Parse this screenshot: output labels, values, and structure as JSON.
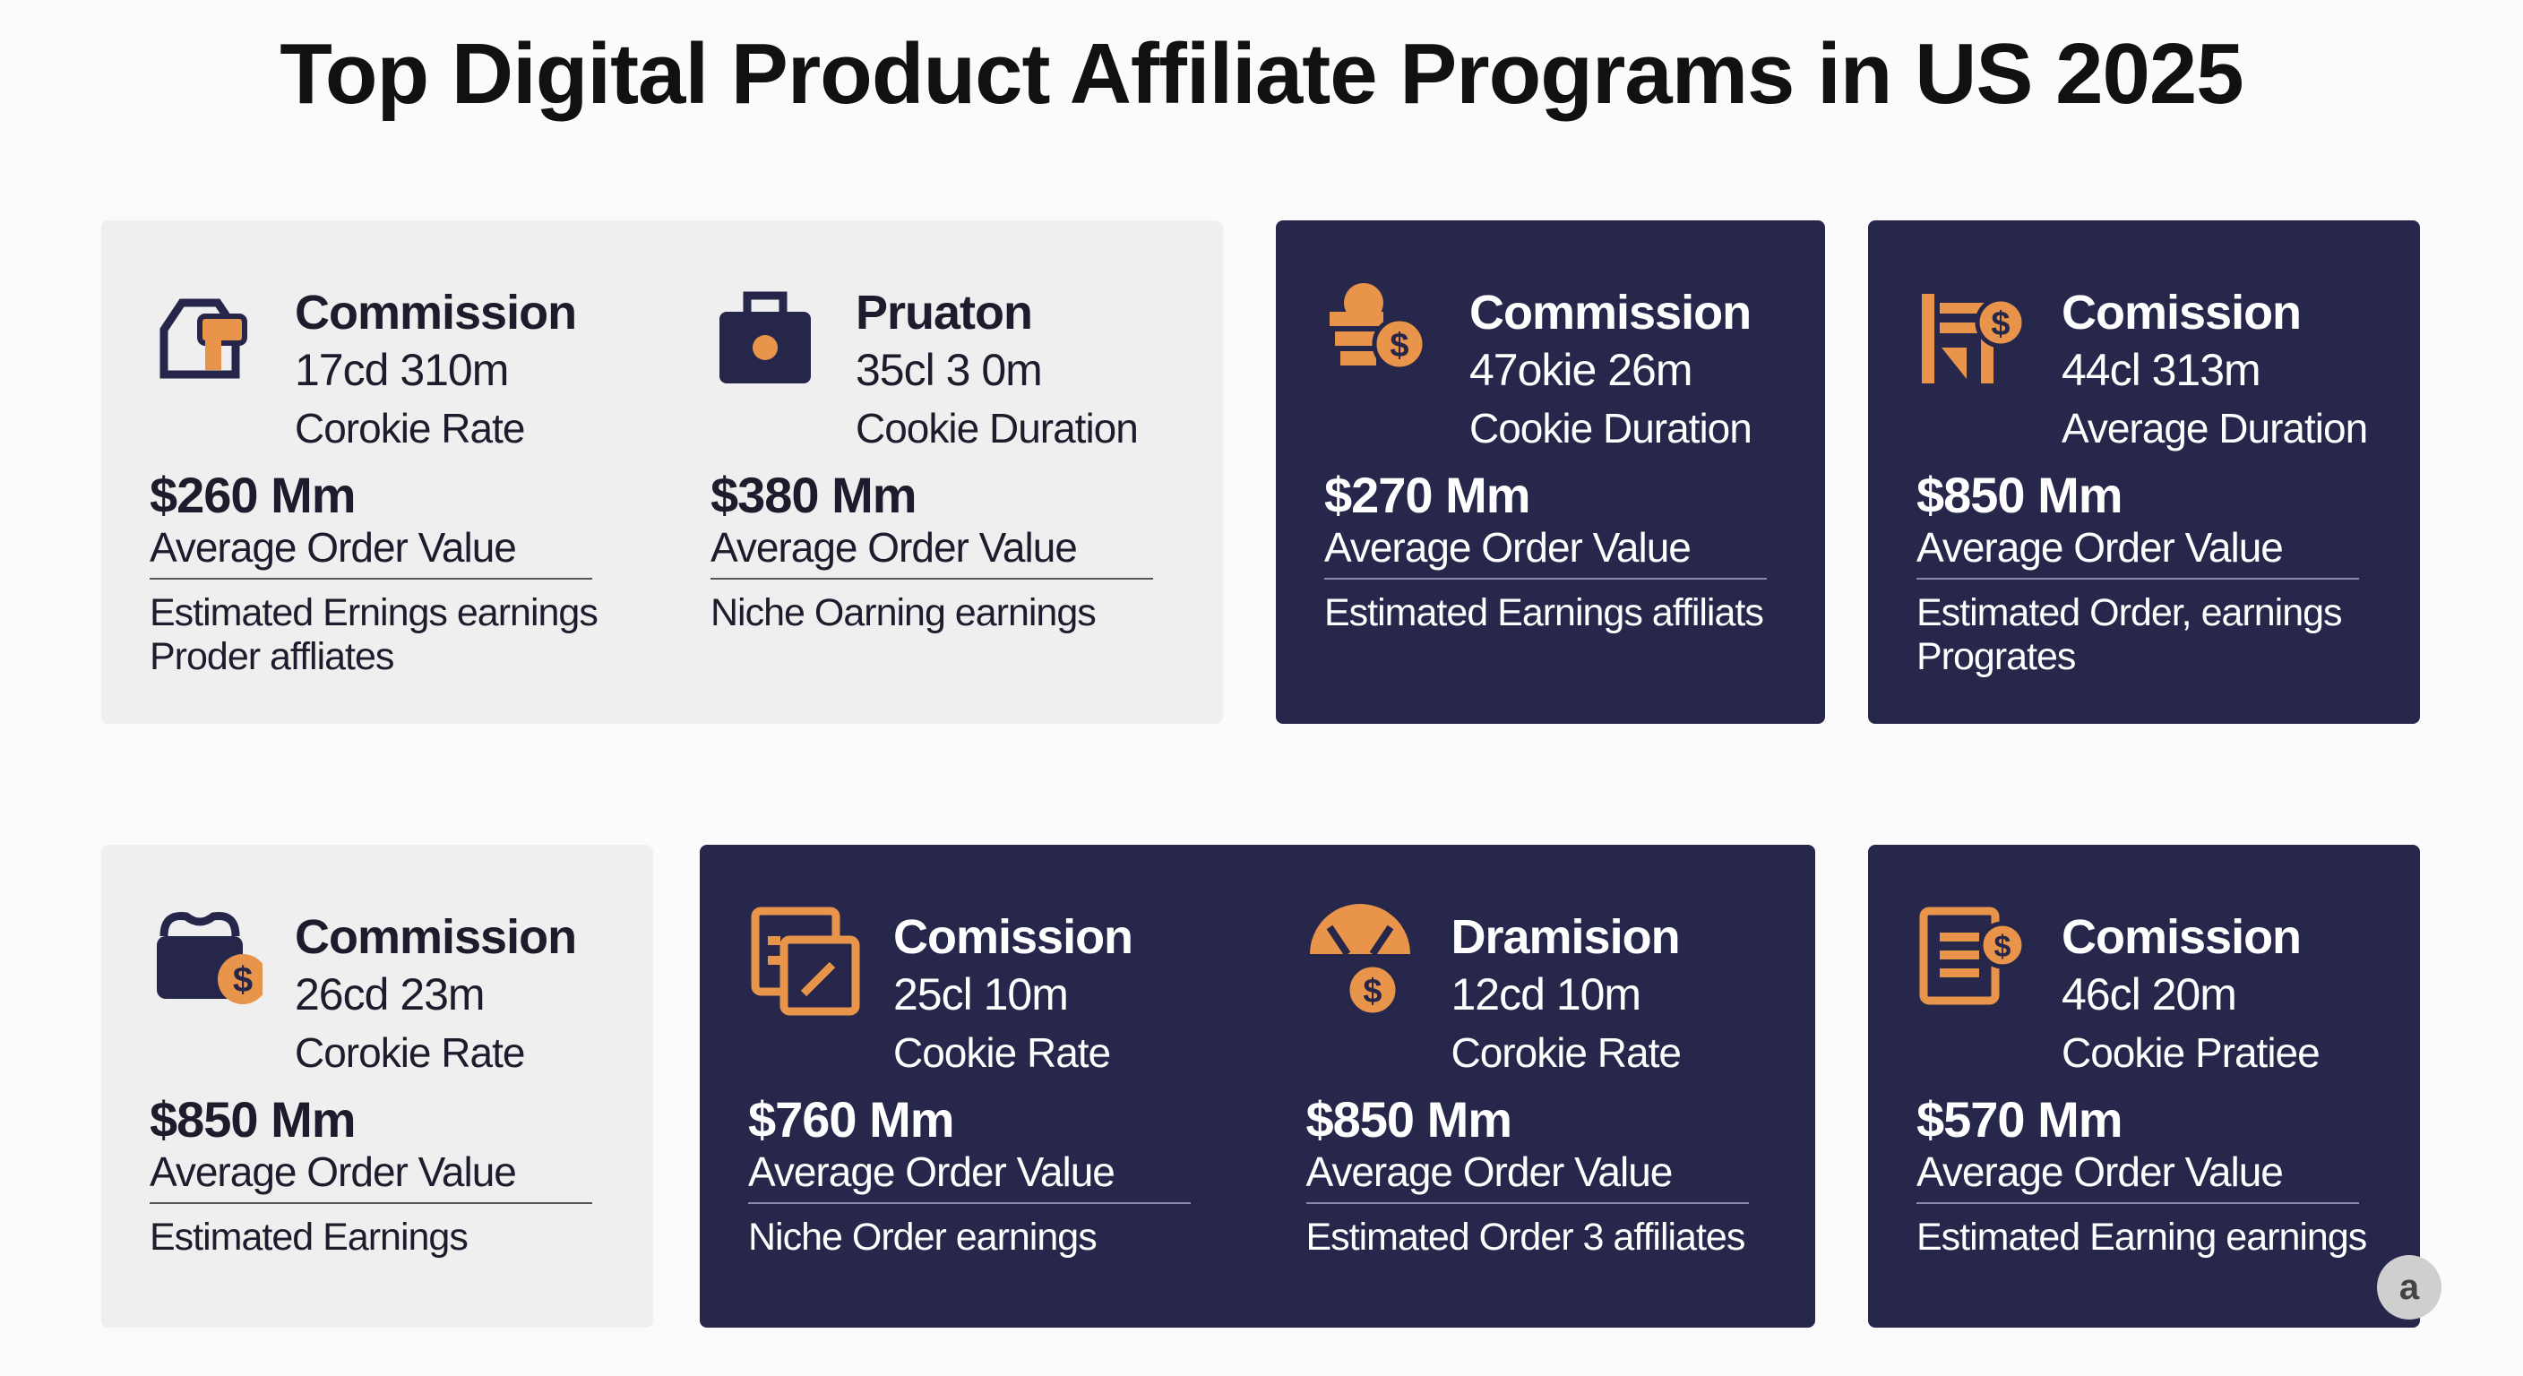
{
  "header": {
    "title": "Top Digital Product Affiliate Programs in US 2025"
  },
  "cards": [
    {
      "items": [
        {
          "title": "Commission",
          "value": "17cd 310m",
          "subtitle": "Corokie Rate",
          "price": "$260 Mm",
          "price_label": "Average Order Value",
          "note": [
            "Estimated Ernings earnings",
            "Proder affliates"
          ]
        },
        {
          "title": "Pruaton",
          "value": "35cl 3 0m",
          "subtitle": "Cookie Duration",
          "price": "$380 Mm",
          "price_label": "Average Order Value",
          "note": [
            "Niche Oarning earnings"
          ]
        }
      ]
    },
    {
      "items": [
        {
          "title": "Commission",
          "value": "47okie 26m",
          "subtitle": "Cookie Duration",
          "price": "$270 Mm",
          "price_label": "Average Order Value",
          "note": [
            "Estimated Earnings affiliats"
          ]
        }
      ]
    },
    {
      "items": [
        {
          "title": "Comission",
          "value": "44cl 313m",
          "subtitle": "Average Duration",
          "price": "$850 Mm",
          "price_label": "Average Order Value",
          "note": [
            "Estimated Order, earnings",
            "Progrates"
          ]
        }
      ]
    },
    {
      "items": [
        {
          "title": "Commission",
          "value": "26cd 23m",
          "subtitle": "Corokie Rate",
          "price": "$850 Mm",
          "price_label": "Average Order Value",
          "note": [
            "Estimated Earnings"
          ]
        }
      ]
    },
    {
      "items": [
        {
          "title": "Comission",
          "value": "25cl 10m",
          "subtitle": "Cookie Rate",
          "price": "$760 Mm",
          "price_label": "Average Order Value",
          "note": [
            "Niche Order earnings"
          ]
        },
        {
          "title": "Dramision",
          "value": "12cd 10m",
          "subtitle": "Corokie Rate",
          "price": "$850 Mm",
          "price_label": "Average Order Value",
          "note": [
            "Estimated Order 3 affiliates"
          ]
        }
      ]
    },
    {
      "items": [
        {
          "title": "Comission",
          "value": "46cl 20m",
          "subtitle": "Cookie Pratiee",
          "price": "$570 Mm",
          "price_label": "Average Order Value",
          "note": [
            "Estimated Earning earnings"
          ]
        }
      ]
    }
  ],
  "badge": "a"
}
